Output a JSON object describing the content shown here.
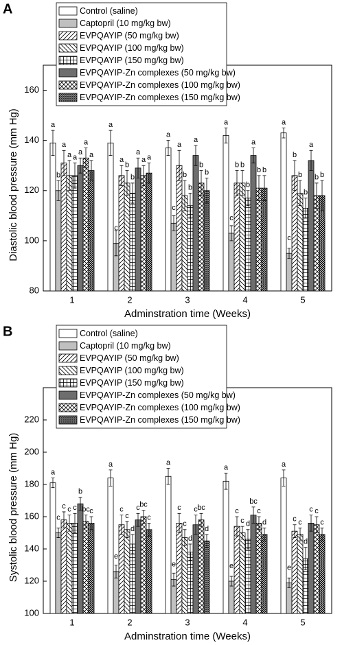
{
  "chart_data": [
    {
      "type": "bar",
      "panel_label": "A",
      "x_label": "Adminstration time (Weeks)",
      "y_label": "Diastolic blood pressure (mm Hg)",
      "categories": [
        "1",
        "2",
        "3",
        "4",
        "5"
      ],
      "ylim": [
        80,
        170
      ],
      "yticks": [
        80,
        100,
        120,
        140,
        160
      ],
      "series": [
        {
          "name": "Control (saline)",
          "color": "#ffffff",
          "pattern": "none",
          "values": [
            139,
            139,
            137,
            142,
            143
          ],
          "errors": [
            5,
            5,
            3,
            3,
            2
          ],
          "significance": [
            "a",
            "a",
            "a",
            "a",
            "a"
          ]
        },
        {
          "name": "Captopril (10 mg/kg bw)",
          "color": "#c0c0c0",
          "pattern": "solid",
          "values": [
            120,
            99,
            107,
            103,
            95
          ],
          "errors": [
            4,
            5,
            3,
            3,
            2
          ],
          "significance": [
            "b",
            "c",
            "c",
            "c",
            "c"
          ]
        },
        {
          "name": "EVPQAYIP (50 mg/kg bw)",
          "color": "#000000",
          "pattern": "diag-fwd",
          "values": [
            131,
            126,
            130,
            123,
            126
          ],
          "errors": [
            5,
            4,
            6,
            5,
            6
          ],
          "significance": [
            "a",
            "a",
            "a",
            "b",
            "b"
          ]
        },
        {
          "name": "EVPQAYIP (100 mg/kg bw)",
          "color": "#000000",
          "pattern": "diag-back",
          "values": [
            126,
            123,
            118,
            123,
            119
          ],
          "errors": [
            6,
            5,
            6,
            5,
            5
          ],
          "significance": [
            "a",
            "b",
            "b",
            "b",
            "b"
          ]
        },
        {
          "name": "EVPQAYIP (150 mg/kg bw)",
          "color": "#000000",
          "pattern": "grid",
          "values": [
            126,
            119,
            114,
            117,
            113
          ],
          "errors": [
            5,
            4,
            5,
            3,
            4
          ],
          "significance": [
            "a",
            "b",
            "b",
            "b",
            "b"
          ]
        },
        {
          "name": "EVPQAYIP-Zn complexes (50 mg/kg bw)",
          "color": "#6e6e6e",
          "pattern": "solid",
          "values": [
            130,
            129,
            134,
            134,
            132
          ],
          "errors": [
            3,
            4,
            4,
            3,
            4
          ],
          "significance": [
            "a",
            "a",
            "a",
            "a",
            "a"
          ]
        },
        {
          "name": "EVPQAYIP-Zn complexes (100 mg/kg bw)",
          "color": "#000000",
          "pattern": "cross",
          "values": [
            133,
            126,
            123,
            121,
            118
          ],
          "errors": [
            4,
            4,
            5,
            5,
            5
          ],
          "significance": [
            "a",
            "a",
            "b",
            "b",
            "b"
          ]
        },
        {
          "name": "EVPQAYIP-Zn complexes (150 mg/kg bw)",
          "color": "#000000",
          "pattern": "cross-fine",
          "values": [
            128,
            127,
            120,
            121,
            118
          ],
          "errors": [
            4,
            4,
            5,
            5,
            6
          ],
          "significance": [
            "a",
            "a",
            "b",
            "b",
            "b"
          ]
        }
      ]
    },
    {
      "type": "bar",
      "panel_label": "B",
      "x_label": "Adminstration time (Weeks)",
      "y_label": "Systolic blood pressure (mm Hg)",
      "categories": [
        "1",
        "2",
        "3",
        "4",
        "5"
      ],
      "ylim": [
        100,
        240
      ],
      "yticks": [
        100,
        120,
        140,
        160,
        180,
        200,
        220
      ],
      "series": [
        {
          "name": "Control (saline)",
          "color": "#ffffff",
          "pattern": "none",
          "values": [
            181,
            184,
            185,
            182,
            184
          ],
          "errors": [
            3,
            5,
            5,
            5,
            5
          ],
          "significance": [
            "a",
            "a",
            "a",
            "a",
            "a"
          ]
        },
        {
          "name": "Captopril (10 mg/kg bw)",
          "color": "#c0c0c0",
          "pattern": "solid",
          "values": [
            150,
            126,
            121,
            120,
            119
          ],
          "errors": [
            3,
            4,
            4,
            3,
            3
          ],
          "significance": [
            "c",
            "e",
            "e",
            "e",
            "e"
          ]
        },
        {
          "name": "EVPQAYIP (50 mg/kg bw)",
          "color": "#000000",
          "pattern": "diag-fwd",
          "values": [
            158,
            155,
            156,
            154,
            151
          ],
          "errors": [
            5,
            6,
            6,
            6,
            4
          ],
          "significance": [
            "c",
            "c",
            "c",
            "c",
            "c"
          ]
        },
        {
          "name": "EVPQAYIP (100 mg/kg bw)",
          "color": "#000000",
          "pattern": "diag-back",
          "values": [
            156,
            152,
            147,
            150,
            149
          ],
          "errors": [
            5,
            5,
            5,
            4,
            4
          ],
          "significance": [
            "c",
            "c",
            "c",
            "c",
            "c"
          ]
        },
        {
          "name": "EVPQAYIP (150 mg/kg bw)",
          "color": "#000000",
          "pattern": "grid",
          "values": [
            156,
            143,
            138,
            146,
            134
          ],
          "errors": [
            6,
            6,
            5,
            6,
            7
          ],
          "significance": [
            "c",
            "d",
            "d",
            "d",
            "d"
          ]
        },
        {
          "name": "EVPQAYIP-Zn complexes (50 mg/kg bw)",
          "color": "#6e6e6e",
          "pattern": "solid",
          "values": [
            168,
            158,
            155,
            161,
            156
          ],
          "errors": [
            4,
            4,
            6,
            5,
            5
          ],
          "significance": [
            "b",
            "c",
            "c",
            "bc",
            "c"
          ]
        },
        {
          "name": "EVPQAYIP-Zn complexes (100 mg/kg bw)",
          "color": "#000000",
          "pattern": "cross",
          "values": [
            157,
            160,
            158,
            156,
            155
          ],
          "errors": [
            4,
            4,
            4,
            4,
            5
          ],
          "significance": [
            "bc",
            "bc",
            "bc",
            "c",
            "c"
          ]
        },
        {
          "name": "EVPQAYIP-Zn complexes (150 mg/kg bw)",
          "color": "#000000",
          "pattern": "cross-fine",
          "values": [
            156,
            152,
            145,
            149,
            149
          ],
          "errors": [
            4,
            4,
            4,
            4,
            4
          ],
          "significance": [
            "c",
            "c",
            "d",
            "d",
            "c"
          ]
        }
      ]
    }
  ]
}
